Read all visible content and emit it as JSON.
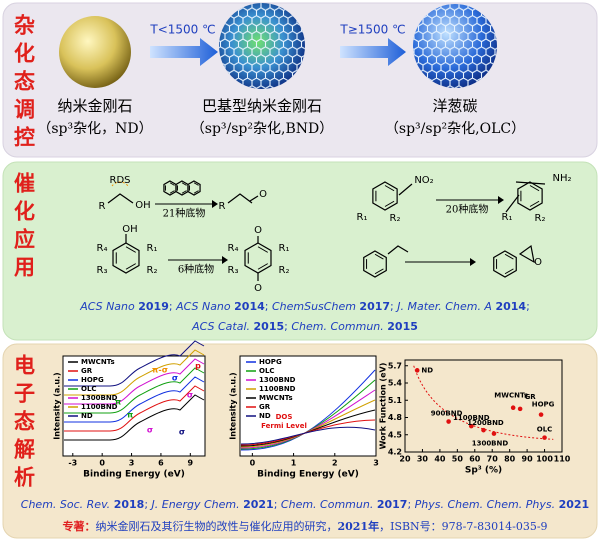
{
  "hybridization": {
    "label": "杂化态调控",
    "arrows": [
      "T<1500 ℃",
      "T≥1500 ℃"
    ],
    "items": [
      {
        "name": "纳米金刚石",
        "detail": "（sp³杂化，ND）"
      },
      {
        "name": "巴基型纳米金刚石",
        "detail": "（sp³/sp²杂化,BND）"
      },
      {
        "name": "洋葱碳",
        "detail": "（sp³/sp²杂化,OLC）"
      }
    ]
  },
  "catalysis": {
    "label": "催化应用",
    "reaction1": {
      "r": "R",
      "rds": "RDS",
      "oh": "OH",
      "condition": "21种底物",
      "product_r": "R",
      "product_o": "O"
    },
    "reaction2": {
      "group": "NO₂",
      "r1": "R₁",
      "r2": "R₂",
      "condition": "20种底物",
      "product_group": "NH₂",
      "product_r1": "R₁",
      "product_r2": "R₂"
    },
    "reaction3": {
      "oh": "OH",
      "r1": "R₁",
      "r2": "R₂",
      "r3": "R₃",
      "r4": "R₄",
      "condition": "6种底物",
      "o_top": "O",
      "o_bottom": "O",
      "product_r1": "R₁",
      "product_r2": "R₂",
      "product_r3": "R₃",
      "product_r4": "R₄"
    },
    "reaction4": {
      "product_o": "O"
    },
    "citations": [
      [
        {
          "text": "ACS Nano ",
          "style": "italic"
        },
        {
          "text": "2019",
          "style": "bold"
        },
        {
          "text": "; ",
          "style": "plain"
        },
        {
          "text": "ACS Nano ",
          "style": "italic"
        },
        {
          "text": "2014",
          "style": "bold"
        },
        {
          "text": "; ",
          "style": "plain"
        },
        {
          "text": "ChemSusChem ",
          "style": "italic"
        },
        {
          "text": "2017",
          "style": "bold"
        },
        {
          "text": "; ",
          "style": "plain"
        },
        {
          "text": "J. Mater. Chem. A ",
          "style": "italic"
        },
        {
          "text": "2014",
          "style": "bold"
        },
        {
          "text": ";",
          "style": "plain"
        }
      ],
      [
        {
          "text": "ACS Catal. ",
          "style": "italic"
        },
        {
          "text": "2015",
          "style": "bold"
        },
        {
          "text": "; ",
          "style": "plain"
        },
        {
          "text": "Chem. Commun. ",
          "style": "italic"
        },
        {
          "text": "2015",
          "style": "bold"
        }
      ]
    ]
  },
  "electronic": {
    "label": "电子态解析",
    "charts": [
      {
        "legend": [
          {
            "name": "MWCNTs",
            "color": "#000000"
          },
          {
            "name": "GR",
            "color": "#e01010"
          },
          {
            "name": "HOPG",
            "color": "#1030e0"
          },
          {
            "name": "OLC",
            "color": "#10a010"
          },
          {
            "name": "1300BND",
            "color": "#d010d0"
          },
          {
            "name": "1100BND",
            "color": "#d0a000"
          },
          {
            "name": "ND",
            "color": "#101080"
          }
        ],
        "xlabel": "Binding Energy (eV)",
        "ylabel": "Intensity (a.u.)",
        "xlim": [
          -4,
          10.5
        ],
        "xticks": [
          -3,
          0,
          3,
          6,
          9
        ],
        "annotations": [
          "π",
          "π-σ",
          "σ",
          "σ",
          "p",
          "π",
          "σ",
          "σ"
        ]
      },
      {
        "legend": [
          {
            "name": "HOPG",
            "color": "#1030e0"
          },
          {
            "name": "OLC",
            "color": "#10a010"
          },
          {
            "name": "1300BND",
            "color": "#d010d0"
          },
          {
            "name": "1100BND",
            "color": "#d0a000"
          },
          {
            "name": "MWCNTs",
            "color": "#000000"
          },
          {
            "name": "GR",
            "color": "#e01010"
          },
          {
            "name": "ND",
            "color": "#101080"
          }
        ],
        "xlabel": "Binding Energy (eV)",
        "ylabel": "Intensity (a.u.)",
        "xlim": [
          -0.3,
          3.0
        ],
        "xticks": [
          0,
          1,
          2,
          3
        ],
        "annotations": [
          "DOS",
          "Fermi Level"
        ]
      },
      {
        "xlabel": "Sp³ (%)",
        "ylabel": "Work Function (eV)",
        "xlim": [
          20,
          110
        ],
        "ylim": [
          4.2,
          5.8
        ],
        "xticks": [
          20,
          30,
          40,
          50,
          60,
          70,
          80,
          90,
          100,
          110
        ],
        "yticks": [
          4.2,
          4.5,
          4.8,
          5.1,
          5.4,
          5.7
        ],
        "color": "#e01010",
        "points": [
          {
            "label": "ND",
            "x": 27,
            "y": 5.62
          },
          {
            "label": "900BND",
            "x": 45,
            "y": 4.73
          },
          {
            "label": "1100BND",
            "x": 58,
            "y": 4.65
          },
          {
            "label": "1200BND",
            "x": 65,
            "y": 4.58
          },
          {
            "label": "1300BND",
            "x": 71,
            "y": 4.52
          },
          {
            "label": "MWCNTs",
            "x": 82,
            "y": 4.97
          },
          {
            "label": "GR",
            "x": 86,
            "y": 4.95
          },
          {
            "label": "HOPG",
            "x": 98,
            "y": 4.85
          },
          {
            "label": "OLC",
            "x": 100,
            "y": 4.45
          }
        ]
      }
    ],
    "citations": [
      [
        {
          "text": "Chem. Soc. Rev. ",
          "style": "italic"
        },
        {
          "text": "2018",
          "style": "bold"
        },
        {
          "text": "; ",
          "style": "plain"
        },
        {
          "text": "J. Energy Chem. ",
          "style": "italic"
        },
        {
          "text": "2021",
          "style": "bold"
        },
        {
          "text": "; ",
          "style": "plain"
        },
        {
          "text": "Chem. Commun. ",
          "style": "italic"
        },
        {
          "text": "2017",
          "style": "bold"
        },
        {
          "text": "; ",
          "style": "plain"
        },
        {
          "text": "Phys. Chem. Chem. Phys. ",
          "style": "italic"
        },
        {
          "text": "2021",
          "style": "bold"
        }
      ]
    ],
    "monograph": [
      {
        "text": "专著：",
        "color": "#e02020",
        "style": "bold"
      },
      {
        "text": "纳米金刚石及其衍生物的改性与催化应用的研究，",
        "color": "#1f3fbf",
        "style": "plain"
      },
      {
        "text": "2021年",
        "color": "#1f3fbf",
        "style": "bold"
      },
      {
        "text": "，ISBN号：978-7-83014-035-9",
        "color": "#1f3fbf",
        "style": "plain"
      }
    ]
  }
}
